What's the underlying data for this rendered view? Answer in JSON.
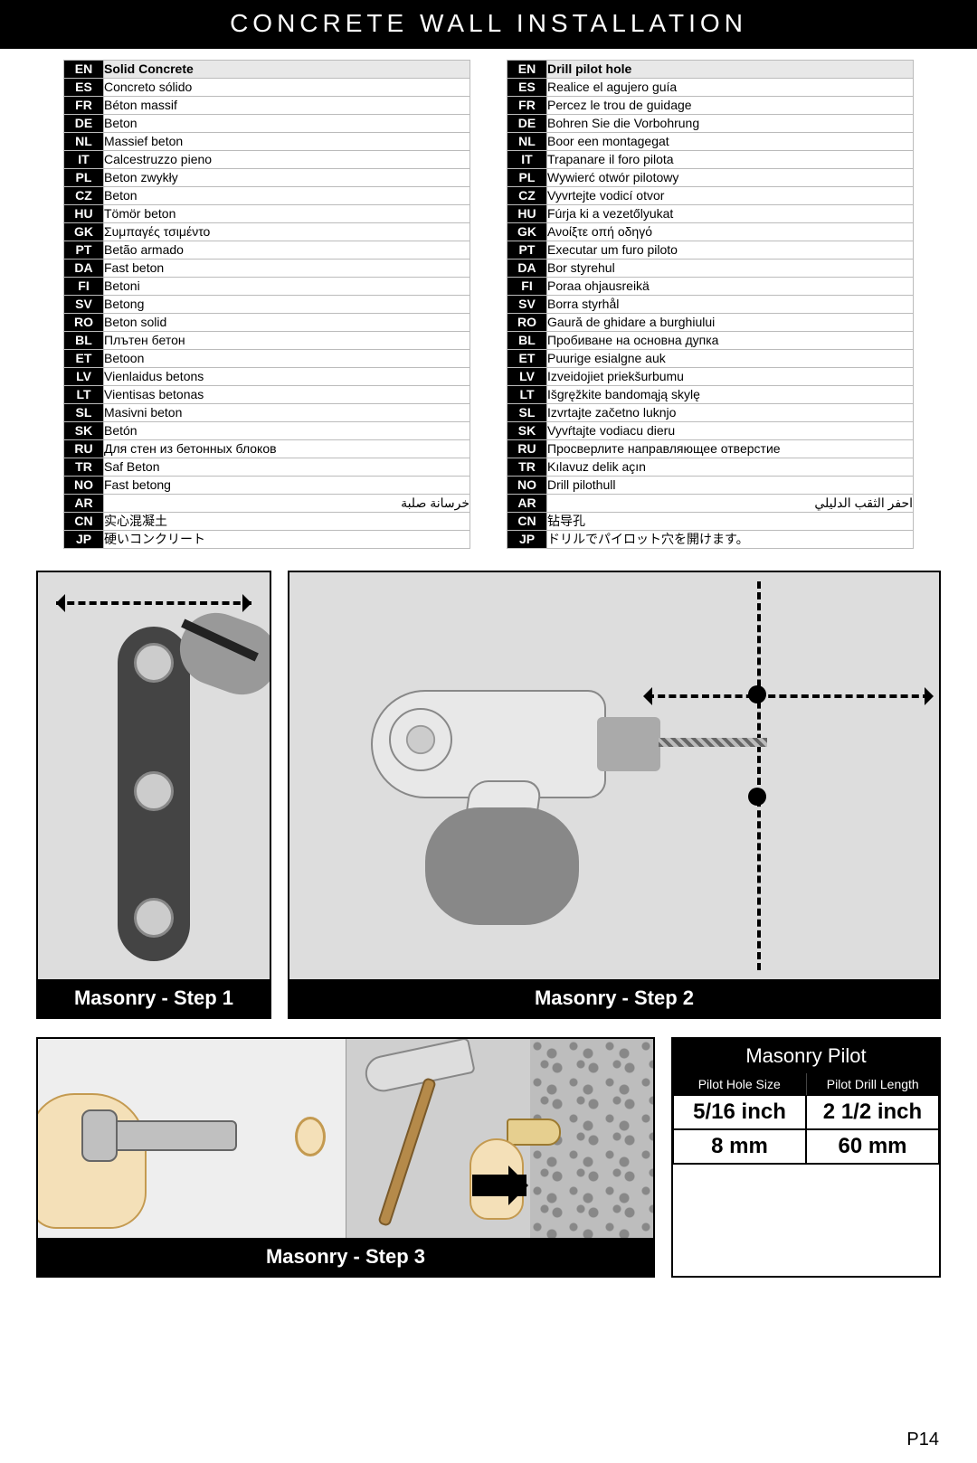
{
  "page_title": "CONCRETE WALL INSTALLATION",
  "page_number": "P14",
  "table_left": [
    {
      "code": "EN",
      "text": "Solid Concrete",
      "header": true
    },
    {
      "code": "ES",
      "text": "Concreto sólido"
    },
    {
      "code": "FR",
      "text": "Béton massif"
    },
    {
      "code": "DE",
      "text": "Beton"
    },
    {
      "code": "NL",
      "text": "Massief beton"
    },
    {
      "code": "IT",
      "text": "Calcestruzzo pieno"
    },
    {
      "code": "PL",
      "text": "Beton zwykły"
    },
    {
      "code": "CZ",
      "text": "Beton"
    },
    {
      "code": "HU",
      "text": "Tömör beton"
    },
    {
      "code": "GK",
      "text": "Συμπαγές τσιμέντο"
    },
    {
      "code": "PT",
      "text": "Betão armado"
    },
    {
      "code": "DA",
      "text": "Fast beton"
    },
    {
      "code": "FI",
      "text": "Betoni"
    },
    {
      "code": "SV",
      "text": "Betong"
    },
    {
      "code": "RO",
      "text": "Beton solid"
    },
    {
      "code": "BL",
      "text": "Плътен бетон"
    },
    {
      "code": "ET",
      "text": "Betoon"
    },
    {
      "code": "LV",
      "text": "Vienlaidus betons"
    },
    {
      "code": "LT",
      "text": "Vientisas betonas"
    },
    {
      "code": "SL",
      "text": "Masivni beton"
    },
    {
      "code": "SK",
      "text": "Betón"
    },
    {
      "code": "RU",
      "text": "Для стен из бетонных блоков"
    },
    {
      "code": "TR",
      "text": "Saf Beton"
    },
    {
      "code": "NO",
      "text": "Fast betong"
    },
    {
      "code": "AR",
      "text": "خرسانة صلبة",
      "rtl": true
    },
    {
      "code": "CN",
      "text": "实心混凝土"
    },
    {
      "code": "JP",
      "text": "硬いコンクリート"
    }
  ],
  "table_right": [
    {
      "code": "EN",
      "text": "Drill pilot hole",
      "header": true
    },
    {
      "code": "ES",
      "text": "Realice el agujero guía"
    },
    {
      "code": "FR",
      "text": "Percez le trou de guidage"
    },
    {
      "code": "DE",
      "text": "Bohren Sie die Vorbohrung"
    },
    {
      "code": "NL",
      "text": "Boor een montagegat"
    },
    {
      "code": "IT",
      "text": "Trapanare il foro pilota"
    },
    {
      "code": "PL",
      "text": "Wywierć otwór pilotowy"
    },
    {
      "code": "CZ",
      "text": "Vyvrtejte vodicí otvor"
    },
    {
      "code": "HU",
      "text": "Fúrja ki a vezetőlyukat"
    },
    {
      "code": "GK",
      "text": "Ανοίξτε οπή οδηγό"
    },
    {
      "code": "PT",
      "text": "Executar um furo piloto"
    },
    {
      "code": "DA",
      "text": "Bor styrehul"
    },
    {
      "code": "FI",
      "text": "Poraa ohjausreikä"
    },
    {
      "code": "SV",
      "text": "Borra styrhål"
    },
    {
      "code": "RO",
      "text": "Gaură de ghidare a burghiului"
    },
    {
      "code": "BL",
      "text": "Пробиване на основна дупка"
    },
    {
      "code": "ET",
      "text": "Puurige esialgne auk"
    },
    {
      "code": "LV",
      "text": "Izveidojiet priekšurbumu"
    },
    {
      "code": "LT",
      "text": "Išgręžkite bandomąją skylę"
    },
    {
      "code": "SL",
      "text": "Izvrtajte začetno luknjo"
    },
    {
      "code": "SK",
      "text": "Vyvŕtajte vodiacu dieru"
    },
    {
      "code": "RU",
      "text": "Просверлите направляющее отверстие"
    },
    {
      "code": "TR",
      "text": "Kılavuz delik açın"
    },
    {
      "code": "NO",
      "text": "Drill pilothull"
    },
    {
      "code": "AR",
      "text": "احفر الثقب الدليلي",
      "rtl": true
    },
    {
      "code": "CN",
      "text": "钻导孔"
    },
    {
      "code": "JP",
      "text": "ドリルでパイロット穴を開けます。"
    }
  ],
  "step1_caption": "Masonry - Step 1",
  "step2_caption": "Masonry - Step 2",
  "step3_caption": "Masonry - Step 3",
  "pilot": {
    "title": "Masonry Pilot",
    "col1": "Pilot Hole Size",
    "col2": "Pilot Drill Length",
    "size_in": "5/16 inch",
    "len_in": "2 1/2 inch",
    "size_mm": "8 mm",
    "len_mm": "60 mm"
  },
  "colors": {
    "black": "#000000",
    "white": "#ffffff",
    "header_gray": "#e8e8e8",
    "border_gray": "#bbbbbb"
  }
}
